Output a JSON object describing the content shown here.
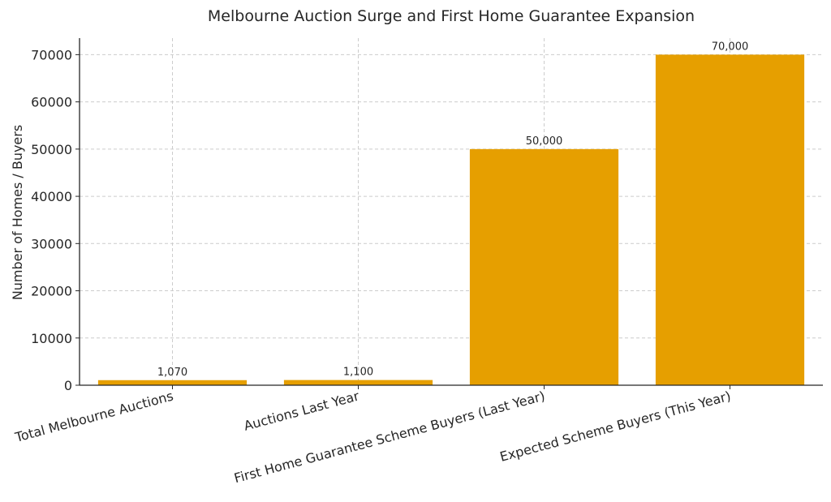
{
  "chart_data": {
    "type": "bar",
    "title": "Melbourne Auction Surge and First Home Guarantee Expansion",
    "xlabel": "",
    "ylabel": "Number of Homes / Buyers",
    "categories": [
      "Total Melbourne Auctions",
      "Auctions Last Year",
      "First Home Guarantee Scheme Buyers (Last Year)",
      "Expected Scheme Buyers (This Year)"
    ],
    "values": [
      1070,
      1100,
      50000,
      70000
    ],
    "data_labels": [
      "1,070",
      "1,100",
      "50,000",
      "70,000"
    ],
    "yticks": [
      0,
      10000,
      20000,
      30000,
      40000,
      50000,
      60000,
      70000
    ],
    "ytick_labels": [
      "0",
      "10000",
      "20000",
      "30000",
      "40000",
      "50000",
      "60000",
      "70000"
    ],
    "ylim": [
      0,
      73500
    ],
    "grid": true,
    "bar_color": "#E69F00"
  }
}
